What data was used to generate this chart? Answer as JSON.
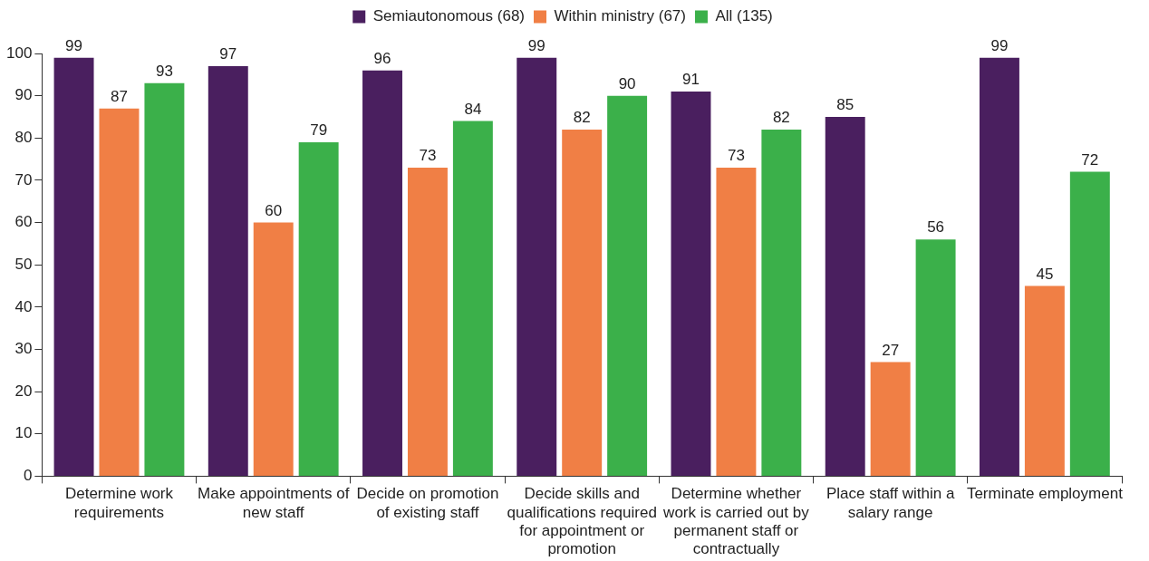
{
  "chart_data": {
    "type": "bar",
    "categories": [
      "Determine work requirements",
      "Make appointments of new staff",
      "Decide on promotion of existing staff",
      "Decide skills and qualifications required for appointment or promotion",
      "Determine whether work is carried out by permanent staff or contractually",
      "Place staff within a salary range",
      "Terminate employment"
    ],
    "series": [
      {
        "name": "Semiautonomous (68)",
        "color": "#4a1f5f",
        "values": [
          99,
          97,
          96,
          99,
          91,
          85,
          99
        ]
      },
      {
        "name": "Within ministry (67)",
        "color": "#f07f45",
        "values": [
          87,
          60,
          73,
          82,
          73,
          27,
          45
        ]
      },
      {
        "name": "All (135)",
        "color": "#3bb04a",
        "values": [
          93,
          79,
          84,
          90,
          82,
          56,
          72
        ]
      }
    ],
    "ylim": [
      0,
      100
    ],
    "yticks": [
      0,
      10,
      20,
      30,
      40,
      50,
      60,
      70,
      80,
      90,
      100
    ],
    "grid": false,
    "legend": "top",
    "data_labels": true
  }
}
